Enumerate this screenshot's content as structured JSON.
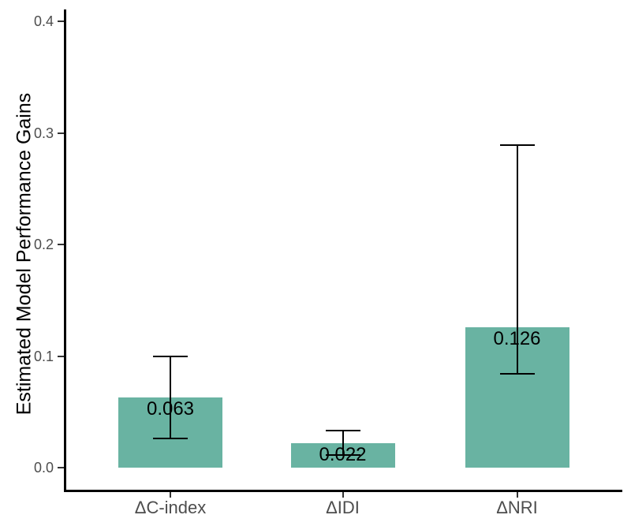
{
  "chart_data": {
    "type": "bar",
    "title": "",
    "ylabel": "Estimated Model Performance Gains",
    "xlabel": "",
    "categories": [
      "ΔC-index",
      "ΔIDI",
      "ΔNRI"
    ],
    "series": [
      {
        "name": "estimated-gain",
        "values": [
          0.063,
          0.022,
          0.126
        ],
        "value_labels": [
          "0.063",
          "0.022",
          "0.126"
        ],
        "error_low": [
          0.026,
          0.011,
          0.084
        ],
        "error_high": [
          0.1,
          0.033,
          0.289
        ]
      }
    ],
    "ylim": [
      0.0,
      0.4
    ],
    "y_ticks": [
      0.0,
      0.1,
      0.2,
      0.3,
      0.4
    ],
    "y_tick_labels": [
      "0.0",
      "0.1",
      "0.2",
      "0.3",
      "0.4"
    ],
    "grid": false,
    "legend": "none",
    "colors": {
      "bar_fill": "#69b3a2",
      "axis_line": "#000000",
      "tick_mark": "#333333",
      "tick_label": "#4d4d4d",
      "value_label": "#000000",
      "error_bar": "#000000",
      "background": "#ffffff"
    }
  }
}
